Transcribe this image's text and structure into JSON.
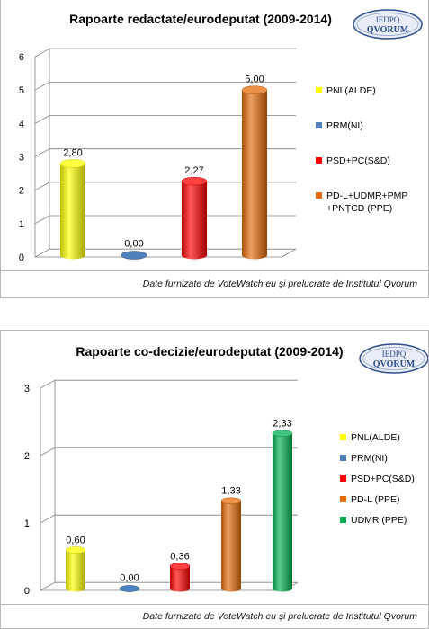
{
  "logo": {
    "line1": "IEDPQ",
    "line2": "QVORUM"
  },
  "chart_data": [
    {
      "type": "bar",
      "title": "Rapoarte redactate/eurodeputat (2009-2014)",
      "categories": [
        "PNL(ALDE)",
        "PRM(NI)",
        "PSD+PC(S&D)",
        "PD-L+UDMR+PMP +PNȚCD (PPE)"
      ],
      "values": [
        2.8,
        0.0,
        2.27,
        5.0
      ],
      "data_labels": [
        "2,80",
        "0,00",
        "2,27",
        "5,00"
      ],
      "yticks": [
        "0",
        "1",
        "2",
        "3",
        "4",
        "5",
        "6"
      ],
      "ylim": [
        0,
        6
      ],
      "legend": [
        {
          "lines": [
            "PNL(ALDE)"
          ],
          "color": "#ffff00"
        },
        {
          "lines": [
            "PRM(NI)"
          ],
          "color": "#4f81bd"
        },
        {
          "lines": [
            "PSD+PC(S&D)"
          ],
          "color": "#ff0000"
        },
        {
          "lines": [
            "PD-L+UDMR+PMP",
            "+PNȚCD (PPE)"
          ],
          "color": "#e36c09"
        }
      ],
      "colors": [
        "#ffff00",
        "#4f81bd",
        "#ff0000",
        "#e36c09"
      ],
      "legend_position": "right",
      "grid": true,
      "source": "Date furnizate de VoteWatch.eu și prelucrate de Institutul Qvorum"
    },
    {
      "type": "bar",
      "title": "Rapoarte co-decizie/eurodeputat (2009-2014)",
      "categories": [
        "PNL(ALDE)",
        "PRM(NI)",
        "PSD+PC(S&D)",
        "PD-L (PPE)",
        "UDMR (PPE)"
      ],
      "values": [
        0.6,
        0.0,
        0.36,
        1.33,
        2.33
      ],
      "data_labels": [
        "0,60",
        "0,00",
        "0,36",
        "1,33",
        "2,33"
      ],
      "yticks": [
        "0",
        "1",
        "2",
        "3"
      ],
      "ylim": [
        0,
        3
      ],
      "legend": [
        {
          "lines": [
            "PNL(ALDE)"
          ],
          "color": "#ffff00"
        },
        {
          "lines": [
            "PRM(NI)"
          ],
          "color": "#4f81bd"
        },
        {
          "lines": [
            "PSD+PC(S&D)"
          ],
          "color": "#ff0000"
        },
        {
          "lines": [
            "PD-L (PPE)"
          ],
          "color": "#e36c09"
        },
        {
          "lines": [
            "UDMR (PPE)"
          ],
          "color": "#00b050"
        }
      ],
      "colors": [
        "#ffff00",
        "#4f81bd",
        "#ff0000",
        "#e36c09",
        "#00b050"
      ],
      "legend_position": "right",
      "grid": true,
      "source": "Date furnizate de VoteWatch.eu și prelucrate de Institutul Qvorum"
    }
  ]
}
